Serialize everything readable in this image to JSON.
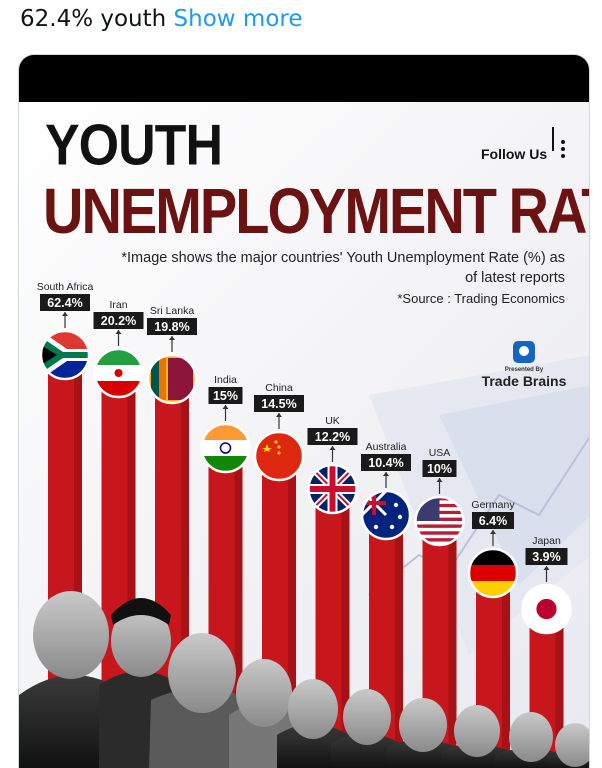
{
  "tweet": {
    "text": "62.4% youth",
    "show_more": "Show more"
  },
  "infographic": {
    "title_line1": "YOUTH",
    "title_line2": "UNEMPLOYMENT RATE",
    "follow": "Follow Us",
    "subtitle_line1": "*Image shows the major countries' Youth Unemployment Rate (%) as",
    "subtitle_line2": "of latest reports",
    "source": "*Source : Trading Economics",
    "presented_by": "Presented By",
    "brand": "Trade Brains"
  },
  "colors": {
    "bar": "#c8171c",
    "bar_dark": "#8e0c10",
    "label_bg": "#1a1a1a",
    "title_dark": "#6b1212"
  },
  "chart_data": {
    "type": "bar",
    "categories": [
      "South Africa",
      "Iran",
      "Sri Lanka",
      "India",
      "China",
      "UK",
      "Australia",
      "USA",
      "Germany",
      "Japan"
    ],
    "values": [
      62.4,
      20.2,
      19.8,
      15,
      14.5,
      12.2,
      10.4,
      10,
      6.4,
      3.9
    ],
    "value_labels": [
      "62.4%",
      "20.2%",
      "19.8%",
      "15%",
      "14.5%",
      "12.2%",
      "10.4%",
      "10%",
      "6.4%",
      "3.9%"
    ],
    "flags": [
      "south-africa-flag",
      "iran-flag",
      "sri-lanka-flag",
      "india-flag",
      "china-flag",
      "uk-flag",
      "australia-flag",
      "usa-flag",
      "germany-flag",
      "japan-flag"
    ],
    "title": "YOUTH UNEMPLOYMENT RATE",
    "ylabel": "Youth Unemployment Rate (%)"
  }
}
